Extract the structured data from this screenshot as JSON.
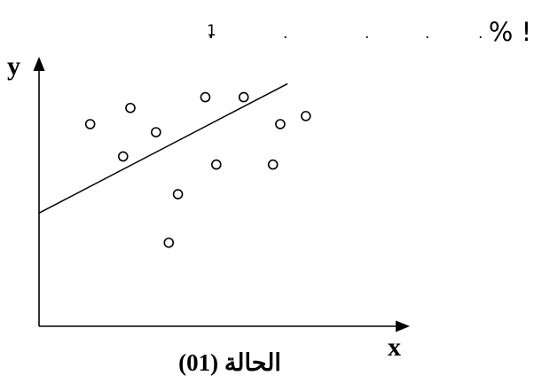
{
  "header": {
    "superscript": "1",
    "dots": [
      ".",
      ".",
      ".",
      ".",
      "."
    ],
    "symbol": "% !"
  },
  "chart_data": {
    "type": "scatter",
    "xlabel": "x",
    "ylabel": "y",
    "caption": "الحالة (01)",
    "grid": false,
    "legend": "none",
    "xlim": [
      0,
      100
    ],
    "ylim": [
      0,
      100
    ],
    "points": [
      {
        "x": 14.0,
        "y": 75
      },
      {
        "x": 23.0,
        "y": 63
      },
      {
        "x": 25.0,
        "y": 81
      },
      {
        "x": 32.0,
        "y": 72
      },
      {
        "x": 35.5,
        "y": 31
      },
      {
        "x": 38.0,
        "y": 49
      },
      {
        "x": 45.5,
        "y": 85
      },
      {
        "x": 48.5,
        "y": 60
      },
      {
        "x": 56.0,
        "y": 85
      },
      {
        "x": 64.0,
        "y": 60
      },
      {
        "x": 66.0,
        "y": 75
      },
      {
        "x": 73.0,
        "y": 78
      }
    ],
    "fit_line": {
      "x": [
        0,
        68
      ],
      "y": [
        42,
        90
      ]
    }
  }
}
